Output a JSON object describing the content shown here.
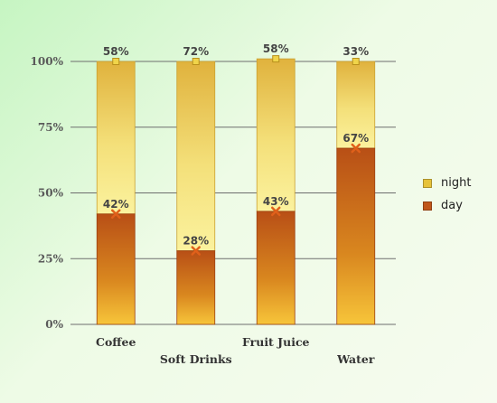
{
  "chart_data": {
    "type": "bar",
    "stacked": true,
    "percent": true,
    "categories": [
      "Coffee",
      "Soft Drinks",
      "Fruit Juice",
      "Water"
    ],
    "series": [
      {
        "name": "day",
        "values": [
          42,
          28,
          43,
          67
        ],
        "labels": [
          "42%",
          "28%",
          "43%",
          "67%"
        ],
        "color": "#b84f16",
        "color_light": "#f5c33a"
      },
      {
        "name": "night",
        "values": [
          58,
          72,
          58,
          33
        ],
        "labels": [
          "58%",
          "72%",
          "58%",
          "33%"
        ],
        "color": "#e0b23d",
        "color_light": "#fbf29a"
      }
    ],
    "ylim": [
      0,
      100
    ],
    "yticks": [
      0,
      25,
      50,
      75,
      100
    ],
    "ytick_labels": [
      "0%",
      "25%",
      "50%",
      "75%",
      "100%"
    ],
    "grid": true,
    "legend": {
      "position": "right",
      "items": [
        {
          "name": "night",
          "color": "#e6c23a"
        },
        {
          "name": "day",
          "color": "#c0561b"
        }
      ]
    }
  }
}
